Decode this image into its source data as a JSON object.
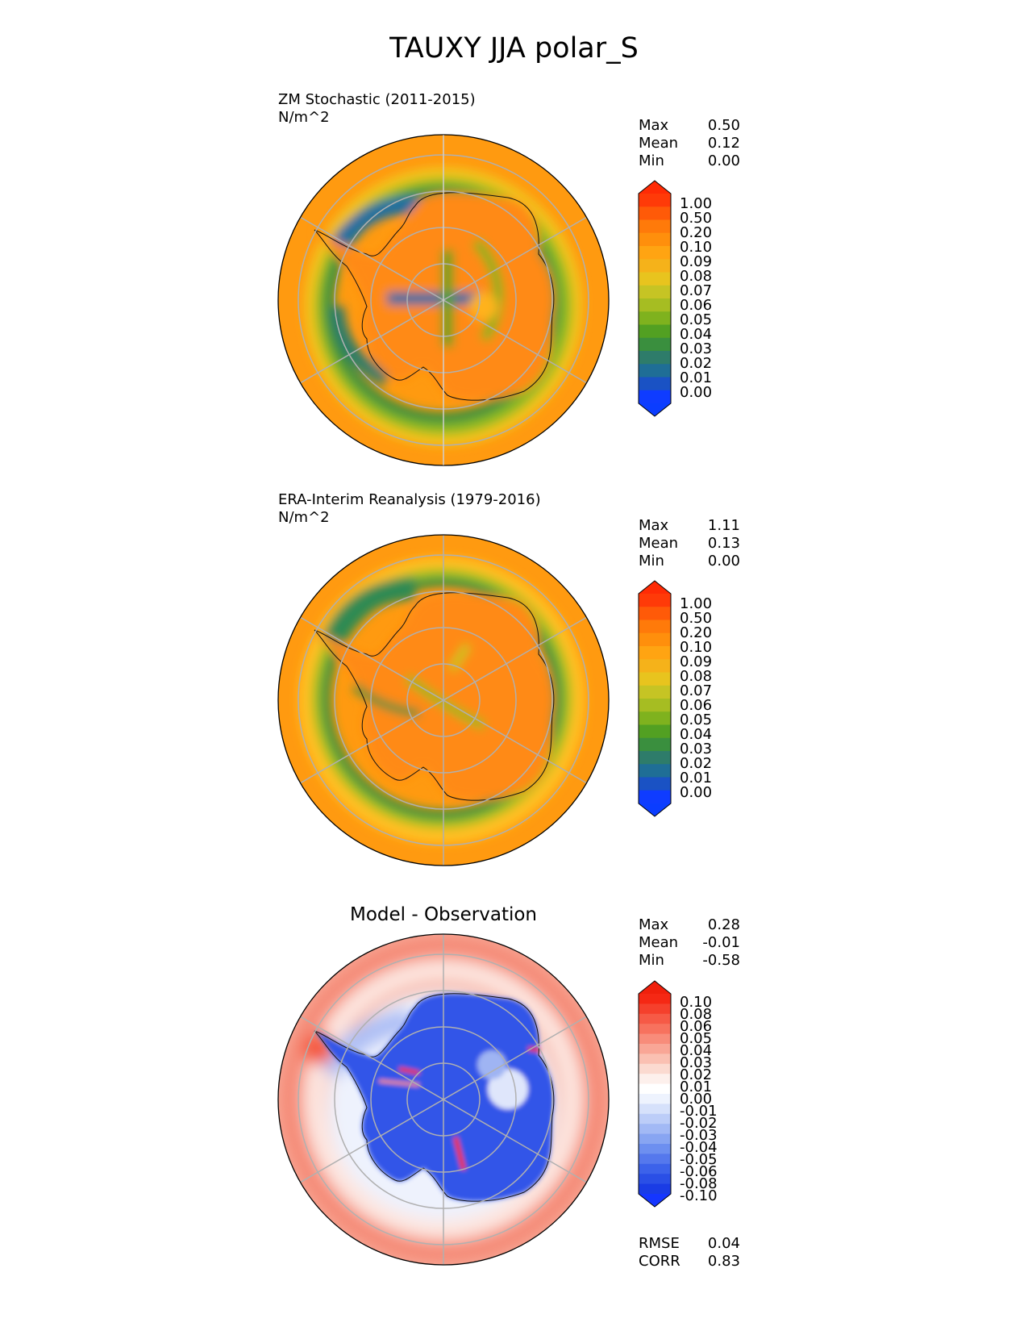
{
  "title": "TAUXY JJA polar_S",
  "panels": [
    {
      "title_line1": "ZM Stochastic (2011-2015)",
      "title_line2": "N/m^2",
      "stats": {
        "max_label": "Max",
        "max": "0.50",
        "mean_label": "Mean",
        "mean": "0.12",
        "min_label": "Min",
        "min": "0.00"
      }
    },
    {
      "title_line1": "ERA-Interim Reanalysis (1979-2016)",
      "title_line2": "N/m^2",
      "stats": {
        "max_label": "Max",
        "max": "1.11",
        "mean_label": "Mean",
        "mean": "0.13",
        "min_label": "Min",
        "min": "0.00"
      }
    },
    {
      "title": "Model - Observation",
      "stats": {
        "max_label": "Max",
        "max": "0.28",
        "mean_label": "Mean",
        "mean": "-0.01",
        "min_label": "Min",
        "min": "-0.58"
      },
      "metrics": {
        "rmse_label": "RMSE",
        "rmse": "0.04",
        "corr_label": "CORR",
        "corr": "0.83"
      }
    }
  ],
  "colorbars": {
    "absolute": {
      "labels": [
        "1.00",
        "0.50",
        "0.20",
        "0.10",
        "0.09",
        "0.08",
        "0.07",
        "0.06",
        "0.05",
        "0.04",
        "0.03",
        "0.02",
        "0.01",
        "0.00"
      ],
      "colors": [
        "#ff3a08",
        "#ff5a08",
        "#ff7a0a",
        "#ff8f0c",
        "#ffa412",
        "#f5b21a",
        "#e8c41e",
        "#c6c424",
        "#a6bd22",
        "#7fb21e",
        "#52a022",
        "#3a8f3e",
        "#2e7c6a",
        "#1f6e96",
        "#1a52c4",
        "#0f3cff"
      ],
      "top_color": "#ff2b05",
      "bottom_color": "#0b3dff"
    },
    "difference": {
      "labels": [
        "0.10",
        "0.08",
        "0.06",
        "0.05",
        "0.04",
        "0.03",
        "0.02",
        "0.01",
        "0.00",
        "-0.01",
        "-0.02",
        "-0.03",
        "-0.04",
        "-0.05",
        "-0.06",
        "-0.08",
        "-0.10"
      ],
      "colors": [
        "#f52814",
        "#f5402c",
        "#f65a46",
        "#f7725e",
        "#f88c7a",
        "#f9a696",
        "#fac0b2",
        "#fbdad0",
        "#fdf0ec",
        "#ffffff",
        "#eef3fe",
        "#d6e1fb",
        "#bccdf8",
        "#a2b9f5",
        "#88a5f2",
        "#6d8ff0",
        "#5578ed",
        "#3c62ea",
        "#2a4fe6",
        "#1a3ce5"
      ],
      "top_color": "#f0200c",
      "bottom_color": "#1536ff"
    }
  },
  "chart_data": [
    {
      "type": "heatmap",
      "projection": "south polar stereographic",
      "title": "ZM Stochastic (2011-2015)",
      "units": "N/m^2",
      "max": 0.5,
      "mean": 0.12,
      "min": 0.0,
      "colorbar_levels": [
        0.0,
        0.01,
        0.02,
        0.03,
        0.04,
        0.05,
        0.06,
        0.07,
        0.08,
        0.09,
        0.1,
        0.2,
        0.5,
        1.0
      ]
    },
    {
      "type": "heatmap",
      "projection": "south polar stereographic",
      "title": "ERA-Interim Reanalysis (1979-2016)",
      "units": "N/m^2",
      "max": 1.11,
      "mean": 0.13,
      "min": 0.0,
      "colorbar_levels": [
        0.0,
        0.01,
        0.02,
        0.03,
        0.04,
        0.05,
        0.06,
        0.07,
        0.08,
        0.09,
        0.1,
        0.2,
        0.5,
        1.0
      ]
    },
    {
      "type": "heatmap",
      "projection": "south polar stereographic",
      "title": "Model - Observation",
      "max": 0.28,
      "mean": -0.01,
      "min": -0.58,
      "rmse": 0.04,
      "corr": 0.83,
      "colorbar_levels": [
        -0.1,
        -0.08,
        -0.06,
        -0.05,
        -0.04,
        -0.03,
        -0.02,
        -0.01,
        0.0,
        0.01,
        0.02,
        0.03,
        0.04,
        0.05,
        0.06,
        0.08,
        0.1
      ]
    }
  ]
}
